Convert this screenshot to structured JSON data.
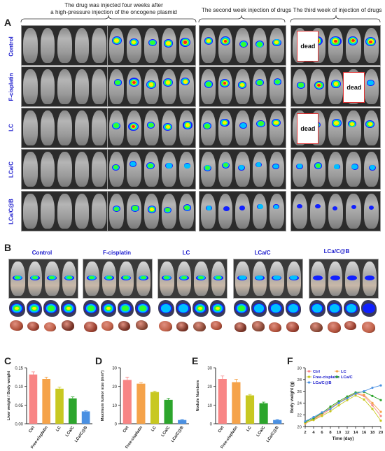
{
  "panels": {
    "a_letter": "A",
    "b_letter": "B",
    "c_letter": "C",
    "d_letter": "D",
    "e_letter": "E",
    "f_letter": "F"
  },
  "panel_a": {
    "header_1": "The drug was injected four weeks after",
    "header_1b": "a high-pressure injection of the oncogene plasmid",
    "header_2": "The second week injection of drugs",
    "header_3": "The third week of injection of drugs",
    "rows": [
      "Control",
      "F-cisplatin",
      "LC",
      "LCa/C",
      "LCa/C@B"
    ],
    "dead_label": "dead"
  },
  "panel_b": {
    "groups": [
      "Control",
      "F-cisplatin",
      "LC",
      "LCa/C",
      "LCa/C@B"
    ]
  },
  "chart_data": [
    {
      "type": "bar",
      "panel": "C",
      "categories": [
        "Ctrl",
        "Free-cisplatin",
        "LC",
        "LCa/C",
        "LCa/C@B"
      ],
      "values": [
        0.132,
        0.12,
        0.094,
        0.068,
        0.033
      ],
      "errors": [
        0.007,
        0.005,
        0.004,
        0.004,
        0.002
      ],
      "colors": [
        "#f88585",
        "#f5a34a",
        "#c8c821",
        "#2ca52c",
        "#4a90e2"
      ],
      "ylabel": "Liver weight / Body weight",
      "ylim": [
        0,
        0.15
      ],
      "yticks": [
        "0.00",
        "0.05",
        "0.10",
        "0.15"
      ]
    },
    {
      "type": "bar",
      "panel": "D",
      "categories": [
        "Ctrl",
        "Free-cisplatin",
        "LC",
        "LCa/C",
        "LCa/C@B"
      ],
      "values": [
        23.5,
        21.5,
        17.0,
        12.8,
        2.0
      ],
      "errors": [
        1.5,
        0.6,
        0.5,
        0.8,
        0.3
      ],
      "colors": [
        "#f88585",
        "#f5a34a",
        "#c8c821",
        "#2ca52c",
        "#4a90e2"
      ],
      "ylabel": "Maximum tumor size (mm²)",
      "ylim": [
        0,
        30
      ],
      "yticks": [
        "0",
        "10",
        "20",
        "30"
      ]
    },
    {
      "type": "bar",
      "panel": "E",
      "categories": [
        "Ctrl",
        "Free-cisplatin",
        "LC",
        "LCa/C",
        "LCa/C@B"
      ],
      "values": [
        24.0,
        22.3,
        15.2,
        11.0,
        2.0
      ],
      "errors": [
        1.6,
        1.5,
        0.5,
        0.6,
        0.3
      ],
      "colors": [
        "#f88585",
        "#f5a34a",
        "#c8c821",
        "#2ca52c",
        "#4a90e2"
      ],
      "ylabel": "Nodule Numbers",
      "ylim": [
        0,
        30
      ],
      "yticks": [
        "0",
        "10",
        "20",
        "30"
      ]
    },
    {
      "type": "line",
      "panel": "F",
      "x": [
        2,
        4,
        6,
        8,
        10,
        12,
        14,
        16,
        18,
        20
      ],
      "series": [
        {
          "name": "Ctrl",
          "color": "#f88585",
          "values": [
            20.6,
            21.2,
            22.0,
            23.0,
            24.0,
            25.0,
            25.6,
            25.2,
            23.6,
            21.8
          ]
        },
        {
          "name": "LC",
          "color": "#f5a34a",
          "values": [
            20.5,
            21.3,
            22.2,
            23.2,
            24.1,
            24.9,
            25.7,
            25.4,
            24.0,
            22.5
          ]
        },
        {
          "name": "Free-cisplatin",
          "color": "#c8c821",
          "values": [
            20.7,
            21.1,
            21.8,
            22.6,
            23.6,
            24.5,
            25.3,
            24.6,
            23.0,
            21.0
          ]
        },
        {
          "name": "LCa/C",
          "color": "#2ca52c",
          "values": [
            20.8,
            21.4,
            22.3,
            23.4,
            24.3,
            25.1,
            25.8,
            25.9,
            25.2,
            24.5
          ]
        },
        {
          "name": "LCa/C@B",
          "color": "#4a90e2",
          "values": [
            20.9,
            21.6,
            22.4,
            23.0,
            24.0,
            24.8,
            25.6,
            26.0,
            26.6,
            27.0
          ]
        }
      ],
      "xlabel": "Time (day)",
      "ylabel": "Body weight (g)",
      "xlim": [
        2,
        20
      ],
      "ylim": [
        20,
        30
      ],
      "xticks": [
        "2",
        "4",
        "6",
        "8",
        "10",
        "12",
        "14",
        "16",
        "18",
        "20"
      ],
      "yticks": [
        "20",
        "22",
        "24",
        "26",
        "28",
        "30"
      ]
    }
  ]
}
